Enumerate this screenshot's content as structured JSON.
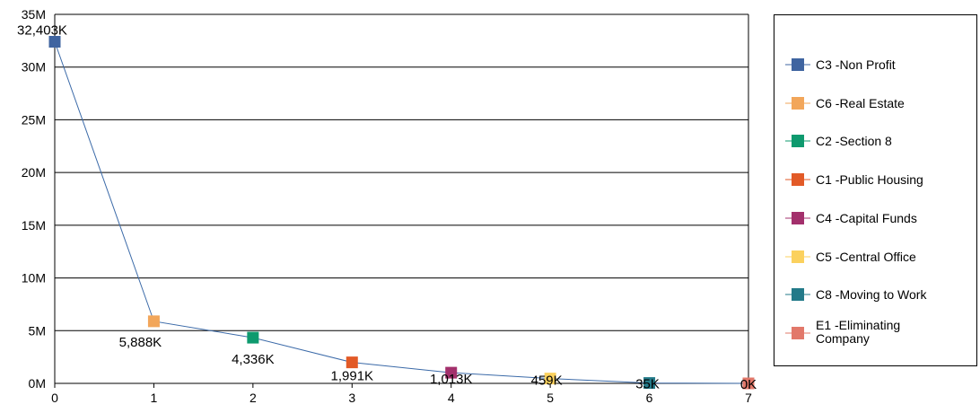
{
  "chart_data": {
    "type": "line",
    "x": [
      0,
      1,
      2,
      3,
      4,
      5,
      6,
      7
    ],
    "values": [
      32403,
      5888,
      4336,
      1991,
      1013,
      459,
      35,
      0
    ],
    "value_unit": "K",
    "data_labels": [
      "32,403K",
      "5,888K",
      "4,336K",
      "1,991K",
      "1,013K",
      "459K",
      "35K",
      "0K"
    ],
    "ylim": [
      0,
      35
    ],
    "y_unit": "M",
    "xlim": [
      0,
      7
    ],
    "y_ticks": [
      "0M",
      "5M",
      "10M",
      "15M",
      "20M",
      "25M",
      "30M",
      "35M"
    ],
    "x_ticks": [
      "0",
      "1",
      "2",
      "3",
      "4",
      "5",
      "6",
      "7"
    ],
    "grid": "horizontal",
    "legend_position": "right",
    "line_color": "#3B6AA8",
    "series": [
      {
        "name": "C3 -Non Profit",
        "color": "#3F64A0"
      },
      {
        "name": "C6 -Real Estate",
        "color": "#F2A65A"
      },
      {
        "name": "C2 -Section 8",
        "color": "#0E9A6E"
      },
      {
        "name": "C1 -Public Housing",
        "color": "#E25A27"
      },
      {
        "name": "C4 -Capital Funds",
        "color": "#A3306C"
      },
      {
        "name": "C5 -Central Office",
        "color": "#FBD15E"
      },
      {
        "name": "C8 -Moving to Work",
        "color": "#237A89"
      },
      {
        "name": "E1 -Eliminating Company",
        "name_lines": [
          "E1 -Eliminating",
          "Company"
        ],
        "color": "#E2786A"
      }
    ]
  }
}
